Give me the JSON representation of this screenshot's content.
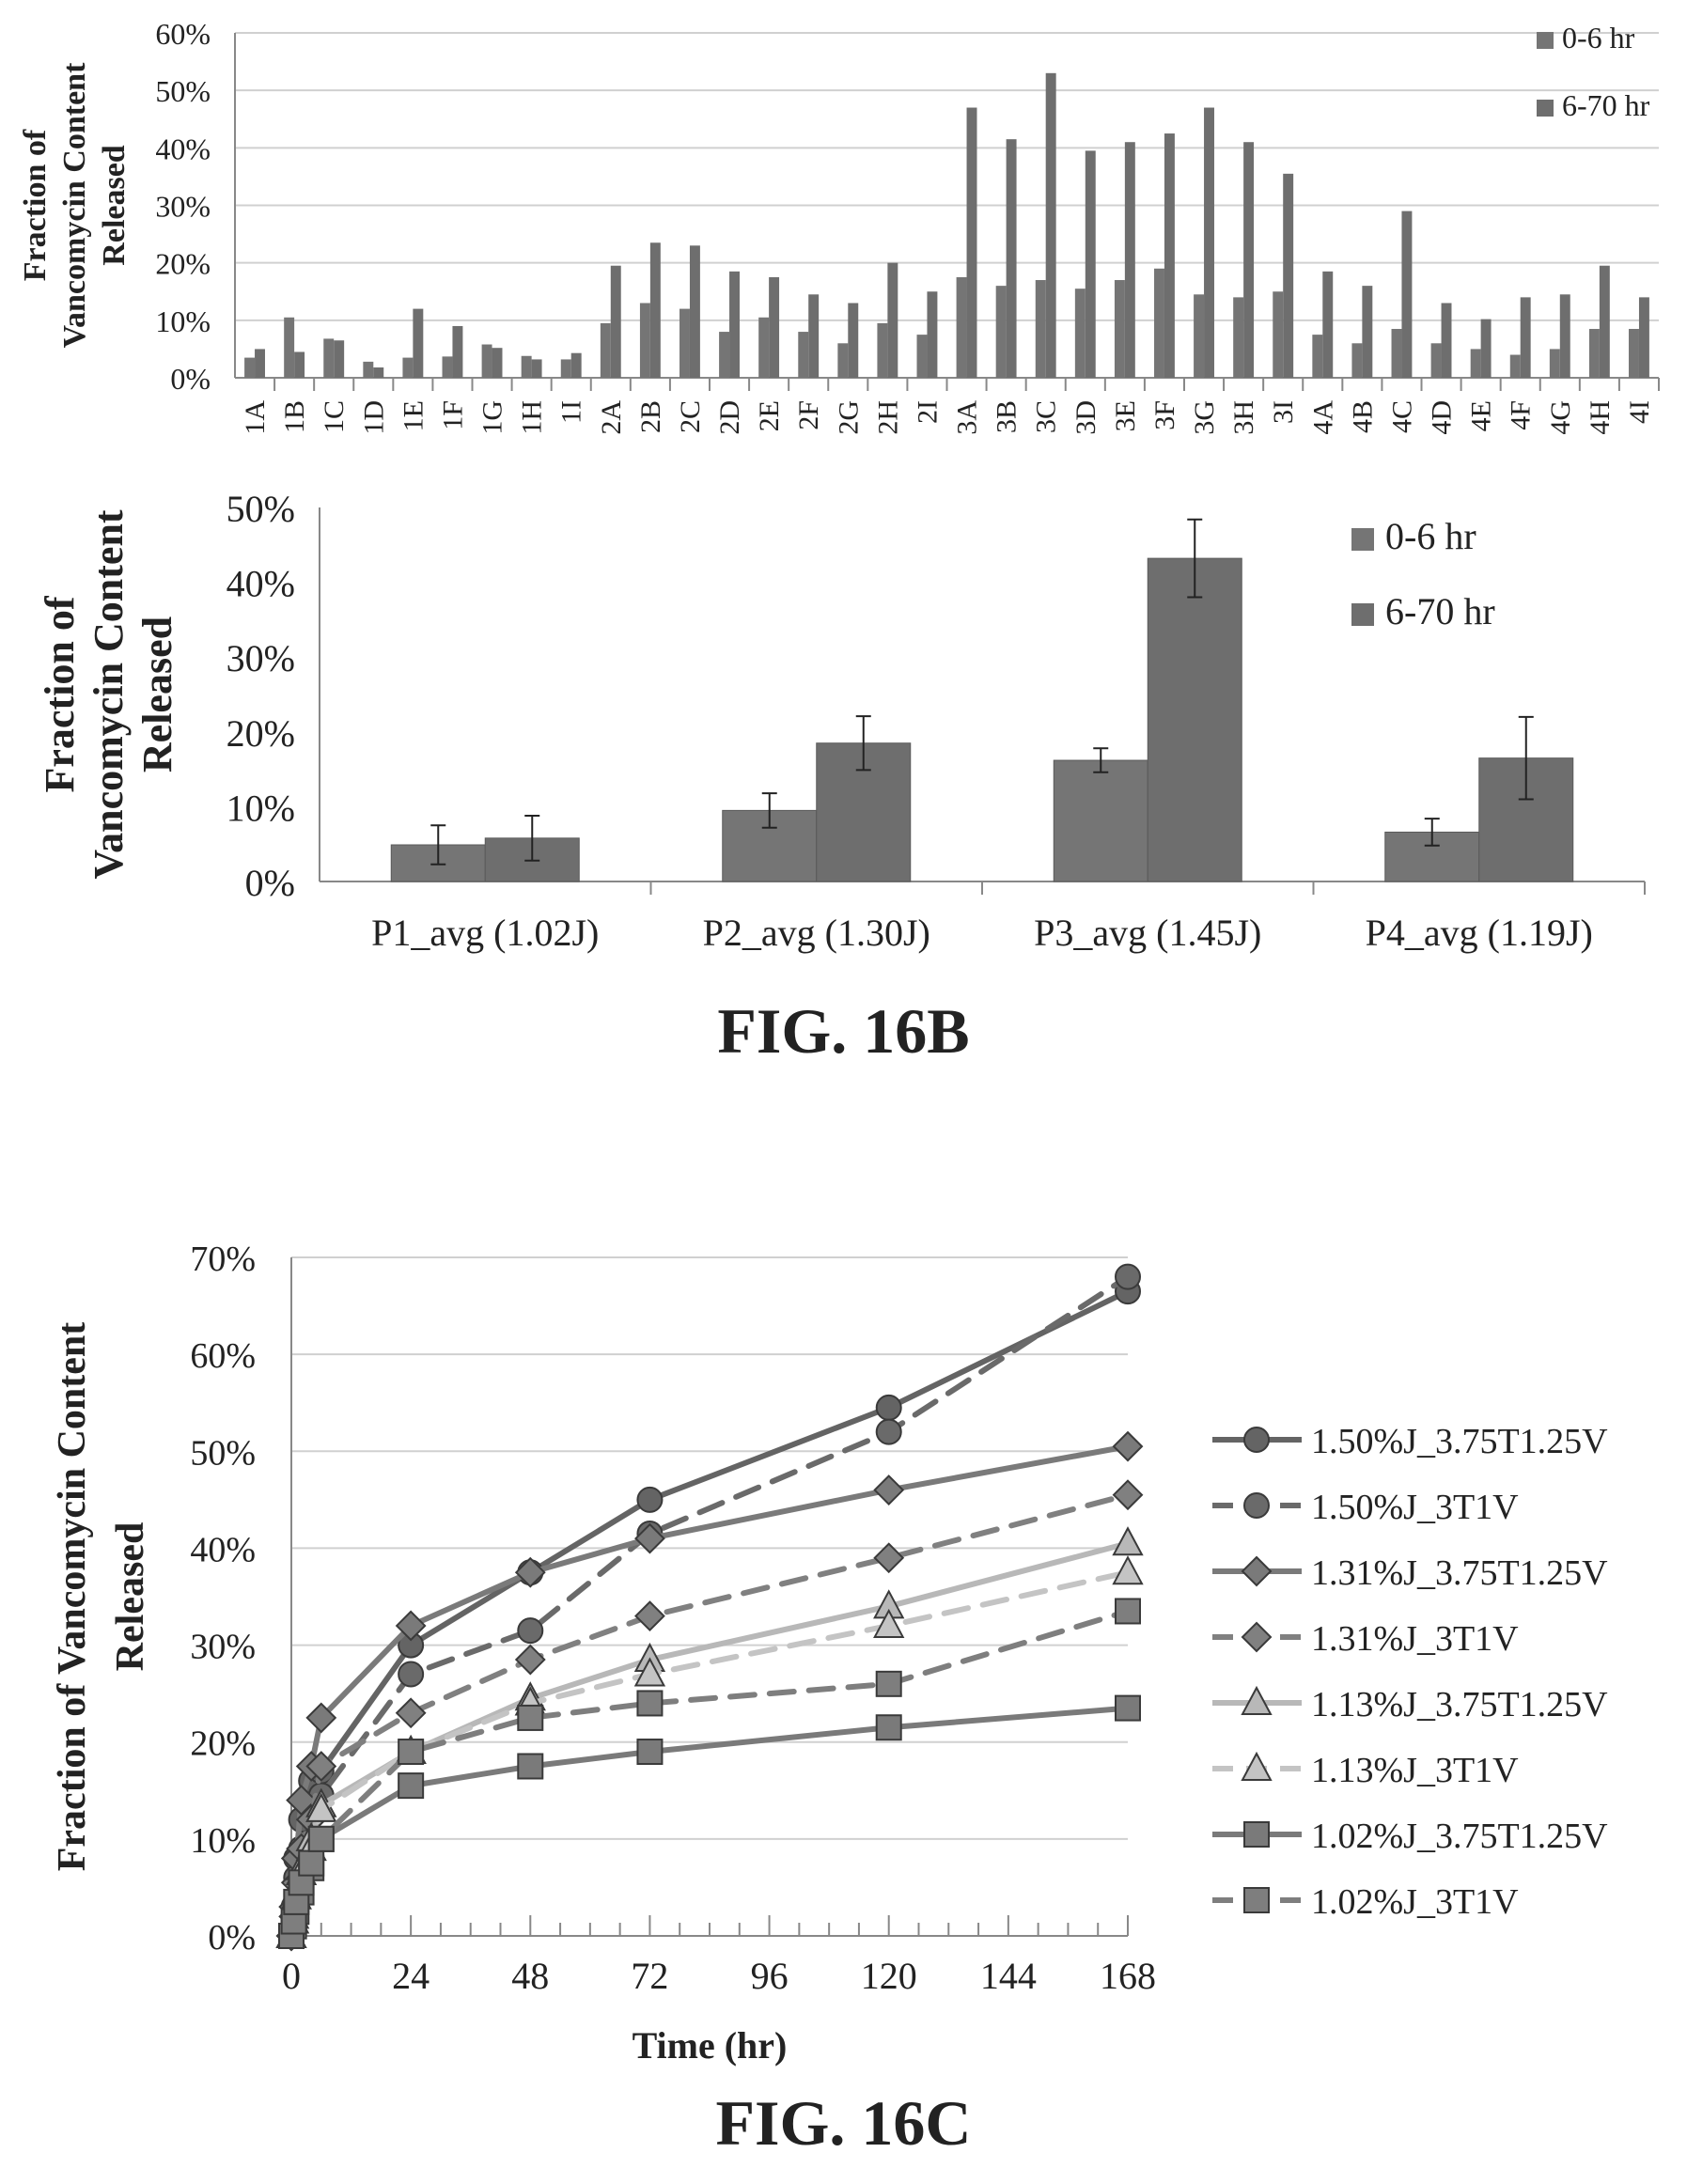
{
  "figure_labels": {
    "fig_b": "FIG. 16B",
    "fig_c": "FIG. 16C"
  },
  "colors": {
    "bar_a": "#757575",
    "bar_b": "#6e6e6e",
    "axis": "#888888",
    "grid": "#d0d0d0",
    "text": "#222222"
  },
  "chart_data": [
    {
      "type": "bar",
      "ylabel_lines": [
        "Fraction of",
        "Vancomycin Content",
        "Released"
      ],
      "ylim": [
        0,
        60
      ],
      "yticks": [
        0,
        10,
        20,
        30,
        40,
        50,
        60
      ],
      "ytick_labels": [
        "0%",
        "10%",
        "20%",
        "30%",
        "40%",
        "50%",
        "60%"
      ],
      "grid": true,
      "legend": "top-right",
      "categories": [
        "1A",
        "1B",
        "1C",
        "1D",
        "1E",
        "1F",
        "1G",
        "1H",
        "1I",
        "2A",
        "2B",
        "2C",
        "2D",
        "2E",
        "2F",
        "2G",
        "2H",
        "2I",
        "3A",
        "3B",
        "3C",
        "3D",
        "3E",
        "3F",
        "3G",
        "3H",
        "3I",
        "4A",
        "4B",
        "4C",
        "4D",
        "4E",
        "4F",
        "4G",
        "4H",
        "4I"
      ],
      "series": [
        {
          "name": "0-6 hr",
          "values": [
            3.5,
            10.5,
            6.8,
            2.8,
            3.5,
            3.7,
            5.8,
            3.8,
            3.2,
            9.5,
            13,
            12,
            8,
            10.5,
            8,
            6,
            9.5,
            7.5,
            17.5,
            16,
            17,
            15.5,
            17,
            19,
            14.5,
            14,
            15,
            7.5,
            6,
            8.5,
            6,
            5,
            4,
            5,
            8.5,
            8.5
          ]
        },
        {
          "name": "6-70 hr",
          "values": [
            5,
            4.5,
            6.5,
            1.8,
            12,
            9,
            5.2,
            3.2,
            4.3,
            19.5,
            23.5,
            23,
            18.5,
            17.5,
            14.5,
            13,
            20,
            15,
            47,
            41.5,
            53,
            39.5,
            41,
            42.5,
            47,
            41,
            35.5,
            18.5,
            16,
            29,
            13,
            10.2,
            14,
            14.5,
            19.5,
            14
          ]
        }
      ]
    },
    {
      "type": "bar",
      "ylabel_lines": [
        "Fraction of",
        "Vancomycin Content",
        "Released"
      ],
      "ylim": [
        0,
        50
      ],
      "yticks": [
        0,
        10,
        20,
        30,
        40,
        50
      ],
      "ytick_labels": [
        "0%",
        "10%",
        "20%",
        "30%",
        "40%",
        "50%"
      ],
      "grid": false,
      "legend": "top-right",
      "categories": [
        "P1_avg (1.02J)",
        "P2_avg (1.30J)",
        "P3_avg (1.45J)",
        "P4_avg (1.19J)"
      ],
      "series": [
        {
          "name": "0-6 hr",
          "values": [
            4.9,
            9.5,
            16.2,
            6.6
          ],
          "errors": [
            2.6,
            2.3,
            1.6,
            1.8
          ]
        },
        {
          "name": "6-70 hr",
          "values": [
            5.8,
            18.5,
            43.2,
            16.5
          ],
          "errors": [
            3.0,
            3.6,
            5.2,
            5.5
          ]
        }
      ]
    },
    {
      "type": "line",
      "ylabel_lines": [
        "Fraction of Vancomycin Content",
        "Released"
      ],
      "xlabel": "Time (hr)",
      "xlim": [
        0,
        168
      ],
      "ylim": [
        0,
        70
      ],
      "xticks": [
        0,
        24,
        48,
        72,
        96,
        120,
        144,
        168
      ],
      "xtick_labels": [
        "0",
        "24",
        "48",
        "72",
        "96",
        "120",
        "144",
        "168"
      ],
      "yticks": [
        0,
        10,
        20,
        30,
        40,
        50,
        60,
        70
      ],
      "ytick_labels": [
        "0%",
        "10%",
        "20%",
        "30%",
        "40%",
        "50%",
        "60%",
        "70%"
      ],
      "grid": true,
      "legend": "right",
      "x": [
        0,
        0.5,
        1,
        2,
        4,
        6,
        24,
        48,
        72,
        120,
        168
      ],
      "series": [
        {
          "name": "1.50%J_3.75T1.25V",
          "marker": "circle",
          "dash": false,
          "color": "#646464",
          "values": [
            0,
            3,
            8,
            12,
            16,
            17,
            30,
            37.5,
            45,
            54.5,
            66.5
          ]
        },
        {
          "name": "1.50%J_3T1V",
          "marker": "circle",
          "dash": true,
          "color": "#6a6a6a",
          "values": [
            0,
            2,
            6,
            9,
            13,
            14.5,
            27,
            31.5,
            41.5,
            52,
            68
          ]
        },
        {
          "name": "1.31%J_3.75T1.25V",
          "marker": "diamond",
          "dash": false,
          "color": "#7a7a7a",
          "values": [
            0,
            3,
            8,
            14,
            17.5,
            22.5,
            32,
            37.5,
            41,
            46,
            50.5
          ]
        },
        {
          "name": "1.31%J_3T1V",
          "marker": "diamond",
          "dash": true,
          "color": "#808080",
          "values": [
            0,
            2,
            5.5,
            9,
            12,
            17.5,
            23,
            28.5,
            33,
            39,
            45.5
          ]
        },
        {
          "name": "1.13%J_3.75T1.25V",
          "marker": "triangle",
          "dash": false,
          "color": "#b8b8b8",
          "values": [
            0,
            2,
            4.5,
            7,
            10,
            13.5,
            19,
            24.5,
            28.5,
            34,
            40.5
          ]
        },
        {
          "name": "1.13%J_3T1V",
          "marker": "triangle",
          "dash": true,
          "color": "#c4c4c4",
          "values": [
            0,
            1.5,
            4,
            6.5,
            9,
            13,
            19,
            24,
            27,
            32,
            37.5
          ]
        },
        {
          "name": "1.02%J_3.75T1.25V",
          "marker": "square",
          "dash": false,
          "color": "#7a7a7a",
          "values": [
            0,
            1,
            2.5,
            4.5,
            7,
            10,
            15.5,
            17.5,
            19,
            21.5,
            23.5
          ]
        },
        {
          "name": "1.02%J_3T1V",
          "marker": "square",
          "dash": true,
          "color": "#7e7e7e",
          "values": [
            0,
            1.5,
            3.5,
            5.5,
            7.5,
            10,
            19,
            22.5,
            24,
            26,
            33.5
          ]
        }
      ]
    }
  ]
}
